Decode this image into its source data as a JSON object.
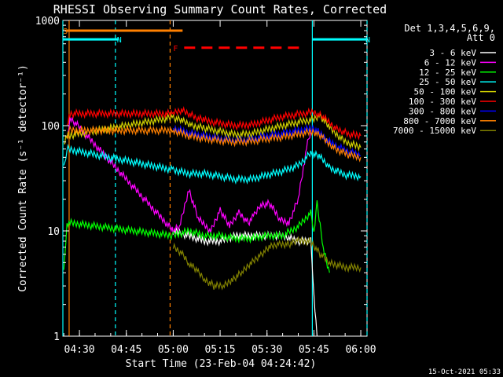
{
  "chart_data": {
    "type": "line",
    "title": "RHESSI Observing Summary Count Rates, Corrected",
    "xlabel": "Start Time (23-Feb-04 04:24:42)",
    "ylabel": "Corrected Count Rate (s⁻¹ detector⁻¹)",
    "xscale": "time",
    "yscale": "log",
    "xlim": [
      "04:24:42",
      "06:02:00"
    ],
    "ylim": [
      1,
      1000
    ],
    "x_ticks": [
      "04:30",
      "04:45",
      "05:00",
      "05:15",
      "05:30",
      "05:45",
      "06:00"
    ],
    "y_ticks": [
      "1",
      "10",
      "100",
      "1000"
    ],
    "legend_header": [
      "Det 1,3,4,5,6,9,",
      "Att 0"
    ],
    "legend_position": "right",
    "footer": "15-Oct-2021 05:33",
    "series": [
      {
        "name": "3 - 6 keV",
        "color": "#ffffff",
        "points": [
          [
            "05:00",
            10
          ],
          [
            "05:05",
            9
          ],
          [
            "05:10",
            8
          ],
          [
            "05:15",
            8
          ],
          [
            "05:20",
            9
          ],
          [
            "05:25",
            9
          ],
          [
            "05:30",
            9
          ],
          [
            "05:35",
            9
          ],
          [
            "05:40",
            8
          ],
          [
            "05:44",
            8
          ],
          [
            "05:45",
            2.5
          ],
          [
            "05:46",
            1
          ]
        ]
      },
      {
        "name": "6 - 12 keV",
        "color": "#ff00ff",
        "points": [
          [
            "04:26",
            70
          ],
          [
            "04:27",
            120
          ],
          [
            "05:00",
            10
          ],
          [
            "05:02",
            11
          ],
          [
            "05:05",
            25
          ],
          [
            "05:08",
            13
          ],
          [
            "05:12",
            10
          ],
          [
            "05:15",
            16
          ],
          [
            "05:18",
            11
          ],
          [
            "05:21",
            15
          ],
          [
            "05:24",
            12
          ],
          [
            "05:26",
            14
          ],
          [
            "05:28",
            18
          ],
          [
            "05:31",
            18
          ],
          [
            "05:34",
            13
          ],
          [
            "05:37",
            12
          ],
          [
            "05:40",
            20
          ],
          [
            "05:42",
            45
          ],
          [
            "05:43",
            70
          ],
          [
            "05:44",
            90
          ]
        ]
      },
      {
        "name": "12 - 25 keV",
        "color": "#00ff00",
        "points": [
          [
            "04:25",
            4
          ],
          [
            "04:26",
            12
          ],
          [
            "05:00",
            9
          ],
          [
            "05:05",
            10
          ],
          [
            "05:10",
            9
          ],
          [
            "05:15",
            9
          ],
          [
            "05:20",
            8.5
          ],
          [
            "05:25",
            8.5
          ],
          [
            "05:30",
            9
          ],
          [
            "05:35",
            9
          ],
          [
            "05:40",
            11
          ],
          [
            "05:44",
            15
          ],
          [
            "05:45",
            10
          ],
          [
            "05:46",
            18
          ],
          [
            "05:48",
            7
          ],
          [
            "05:50",
            4
          ]
        ]
      },
      {
        "name": "25 - 50 keV",
        "color": "#00ffff",
        "points": [
          [
            "04:25",
            40
          ],
          [
            "04:26",
            60
          ],
          [
            "05:00",
            38
          ],
          [
            "05:05",
            35
          ],
          [
            "05:10",
            35
          ],
          [
            "05:15",
            33
          ],
          [
            "05:20",
            31
          ],
          [
            "05:25",
            31
          ],
          [
            "05:30",
            34
          ],
          [
            "05:35",
            37
          ],
          [
            "05:40",
            42
          ],
          [
            "05:44",
            55
          ],
          [
            "05:47",
            50
          ],
          [
            "05:50",
            40
          ],
          [
            "05:55",
            34
          ],
          [
            "06:00",
            33
          ]
        ]
      },
      {
        "name": "50 - 100 keV",
        "color": "#cccc00",
        "points": [
          [
            "04:25",
            65
          ],
          [
            "04:26",
            80
          ],
          [
            "05:00",
            120
          ],
          [
            "05:03",
            110
          ],
          [
            "05:06",
            100
          ],
          [
            "05:10",
            95
          ],
          [
            "05:15",
            88
          ],
          [
            "05:20",
            82
          ],
          [
            "05:25",
            84
          ],
          [
            "05:30",
            92
          ],
          [
            "05:35",
            100
          ],
          [
            "05:40",
            108
          ],
          [
            "05:45",
            115
          ],
          [
            "05:47",
            125
          ],
          [
            "05:50",
            95
          ],
          [
            "05:55",
            70
          ],
          [
            "06:00",
            62
          ]
        ]
      },
      {
        "name": "100 - 300 keV",
        "color": "#ff0000",
        "points": [
          [
            "04:26",
            100
          ],
          [
            "04:27",
            130
          ],
          [
            "05:00",
            130
          ],
          [
            "05:03",
            140
          ],
          [
            "05:07",
            120
          ],
          [
            "05:10",
            112
          ],
          [
            "05:15",
            105
          ],
          [
            "05:20",
            100
          ],
          [
            "05:25",
            102
          ],
          [
            "05:30",
            112
          ],
          [
            "05:35",
            122
          ],
          [
            "05:40",
            128
          ],
          [
            "05:45",
            135
          ],
          [
            "05:48",
            120
          ],
          [
            "05:52",
            95
          ],
          [
            "05:56",
            83
          ],
          [
            "06:00",
            80
          ]
        ]
      },
      {
        "name": "300 - 800 keV",
        "color": "#0000ff",
        "points": [
          [
            "05:00",
            95
          ],
          [
            "05:05",
            85
          ],
          [
            "05:10",
            80
          ],
          [
            "05:15",
            75
          ],
          [
            "05:20",
            72
          ],
          [
            "05:25",
            74
          ],
          [
            "05:30",
            80
          ],
          [
            "05:35",
            84
          ],
          [
            "05:40",
            90
          ],
          [
            "05:45",
            95
          ],
          [
            "05:50",
            70
          ],
          [
            "05:55",
            58
          ],
          [
            "06:00",
            52
          ]
        ]
      },
      {
        "name": "800 - 7000 keV",
        "color": "#ff8000",
        "points": [
          [
            "04:26",
            80
          ],
          [
            "04:27",
            90
          ],
          [
            "05:00",
            90
          ],
          [
            "05:05",
            80
          ],
          [
            "05:10",
            75
          ],
          [
            "05:15",
            72
          ],
          [
            "05:20",
            70
          ],
          [
            "05:25",
            71
          ],
          [
            "05:30",
            75
          ],
          [
            "05:35",
            78
          ],
          [
            "05:40",
            83
          ],
          [
            "05:45",
            88
          ],
          [
            "05:48",
            75
          ],
          [
            "05:52",
            60
          ],
          [
            "05:56",
            53
          ],
          [
            "06:00",
            50
          ]
        ]
      },
      {
        "name": "7000 - 15000 keV",
        "color": "#808000",
        "points": [
          [
            "05:00",
            7
          ],
          [
            "05:03",
            6
          ],
          [
            "05:05",
            5
          ],
          [
            "05:08",
            4
          ],
          [
            "05:10",
            3.5
          ],
          [
            "05:13",
            3
          ],
          [
            "05:16",
            3
          ],
          [
            "05:19",
            3.5
          ],
          [
            "05:22",
            4
          ],
          [
            "05:25",
            5
          ],
          [
            "05:28",
            6
          ],
          [
            "05:31",
            7
          ],
          [
            "05:34",
            7.5
          ],
          [
            "05:37",
            7.5
          ],
          [
            "05:40",
            8
          ],
          [
            "05:44",
            8
          ],
          [
            "05:47",
            6
          ],
          [
            "05:50",
            5
          ],
          [
            "05:55",
            4.5
          ],
          [
            "06:00",
            4.5
          ]
        ]
      }
    ],
    "flag_bars": [
      {
        "label": "S",
        "color": "#ff8000",
        "x": [
          "04:25:30",
          "05:03:00"
        ],
        "y": 800
      },
      {
        "label": "N",
        "color": "#00ffff",
        "x": [
          "04:24:42",
          "04:42:30"
        ],
        "y": 660
      },
      {
        "label": "N",
        "color": "#00ffff",
        "x": [
          "05:44:30",
          "06:02:00"
        ],
        "y": 660
      },
      {
        "label": "F",
        "color": "#ff0000",
        "x": [
          "05:03:30",
          "05:41:00"
        ],
        "y": 550
      }
    ],
    "vertical_markers": [
      {
        "x": "04:24:42",
        "color": "#00ffff",
        "style": "solid"
      },
      {
        "x": "04:26:42",
        "color": "#ff8000",
        "style": "solid"
      },
      {
        "x": "04:41:30",
        "color": "#00ffff",
        "style": "dashed"
      },
      {
        "x": "04:59:00",
        "color": "#ff8000",
        "style": "dashed"
      },
      {
        "x": "05:44:30",
        "color": "#00ffff",
        "style": "solid"
      },
      {
        "x": "06:02:00",
        "color": "#00ffff",
        "style": "dashed"
      }
    ]
  }
}
